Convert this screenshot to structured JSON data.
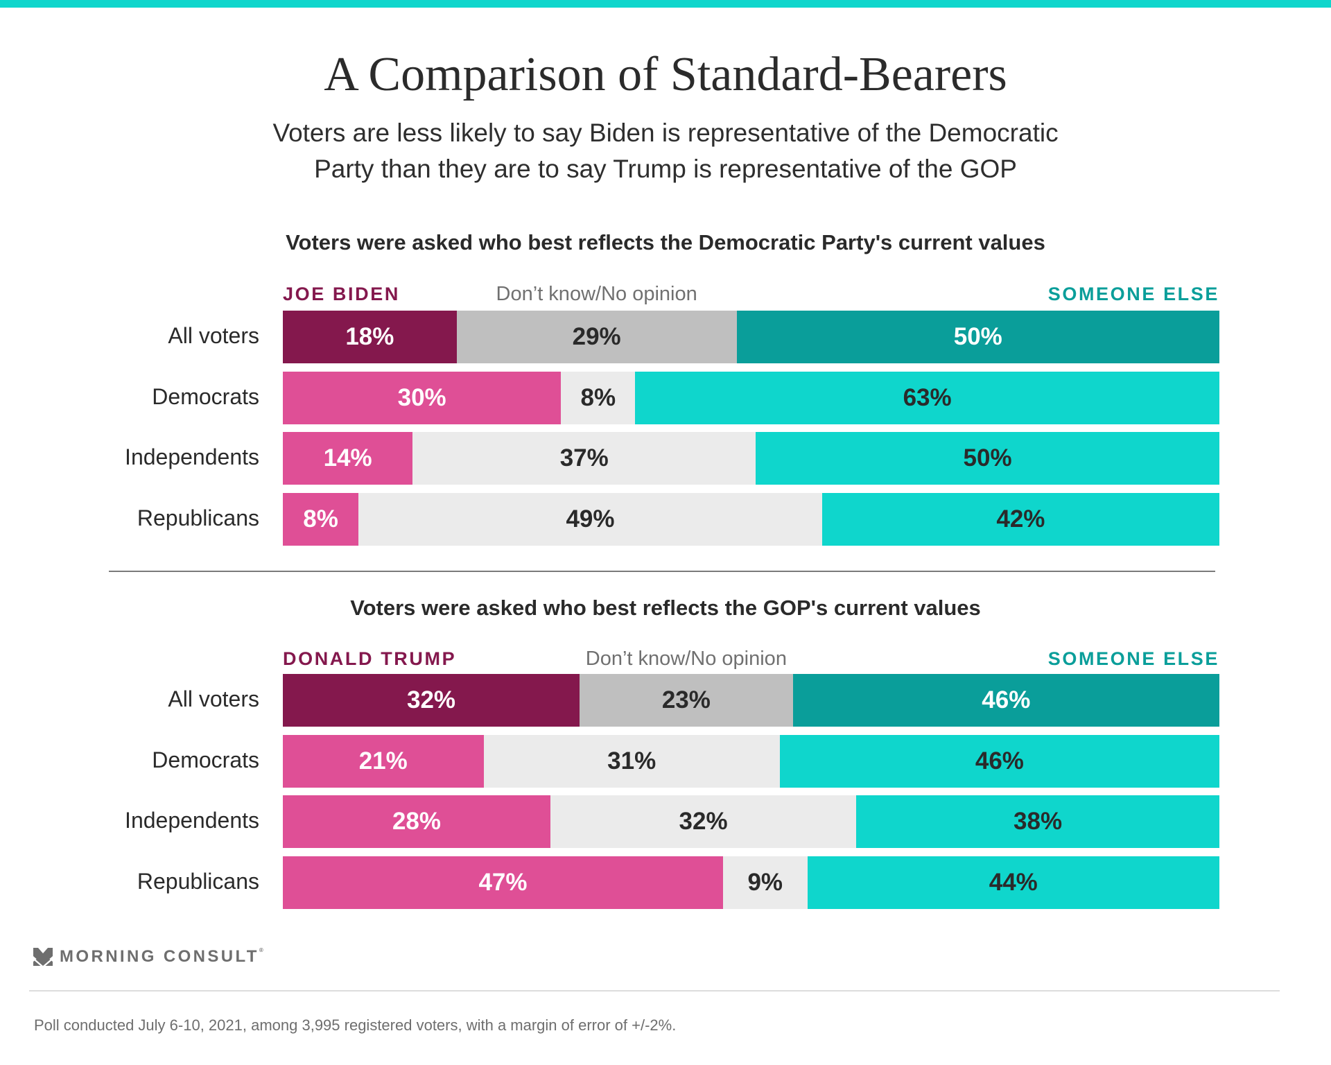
{
  "header": {
    "title": "A Comparison of Standard-Bearers",
    "subtitle_lines": [
      "Voters are less likely to say Biden is representative of the Democratic",
      "Party than they are to say Trump is representative of the GOP"
    ]
  },
  "colors": {
    "top_bar": "#0fd6cc",
    "candidate_all": "#84184d",
    "candidate_group": "#df4f96",
    "dk_all": "#bfbfbf",
    "dk_group": "#ebebeb",
    "else_all": "#0a9e9a",
    "else_group": "#0fd6cc",
    "candidate_label": "#84184d",
    "else_label": "#0a9e9a"
  },
  "chart_data": [
    {
      "type": "bar",
      "orientation": "horizontal-stacked",
      "title": "Voters were asked who best reflects the Democratic Party's current values",
      "categories": [
        "All voters",
        "Democrats",
        "Independents",
        "Republicans"
      ],
      "series": [
        {
          "name": "JOE BIDEN",
          "values": [
            18,
            30,
            14,
            8
          ]
        },
        {
          "name": "Don’t know/No opinion",
          "values": [
            29,
            8,
            37,
            49
          ]
        },
        {
          "name": "SOMEONE ELSE",
          "values": [
            50,
            63,
            50,
            42
          ]
        }
      ],
      "unit": "%",
      "legend": "top"
    },
    {
      "type": "bar",
      "orientation": "horizontal-stacked",
      "title": "Voters were asked who best reflects the GOP's current values",
      "categories": [
        "All voters",
        "Democrats",
        "Independents",
        "Republicans"
      ],
      "series": [
        {
          "name": "DONALD TRUMP",
          "values": [
            32,
            21,
            28,
            47
          ]
        },
        {
          "name": "Don’t know/No opinion",
          "values": [
            23,
            31,
            32,
            9
          ]
        },
        {
          "name": "SOMEONE ELSE",
          "values": [
            46,
            46,
            38,
            44
          ]
        }
      ],
      "unit": "%",
      "legend": "top"
    }
  ],
  "footer": {
    "brand": "MORNING CONSULT",
    "brand_mark": "®",
    "logo_icon": "morning-consult-chevron-icon",
    "note": "Poll conducted July 6-10, 2021, among 3,995 registered voters, with a margin of error of +/-2%."
  }
}
